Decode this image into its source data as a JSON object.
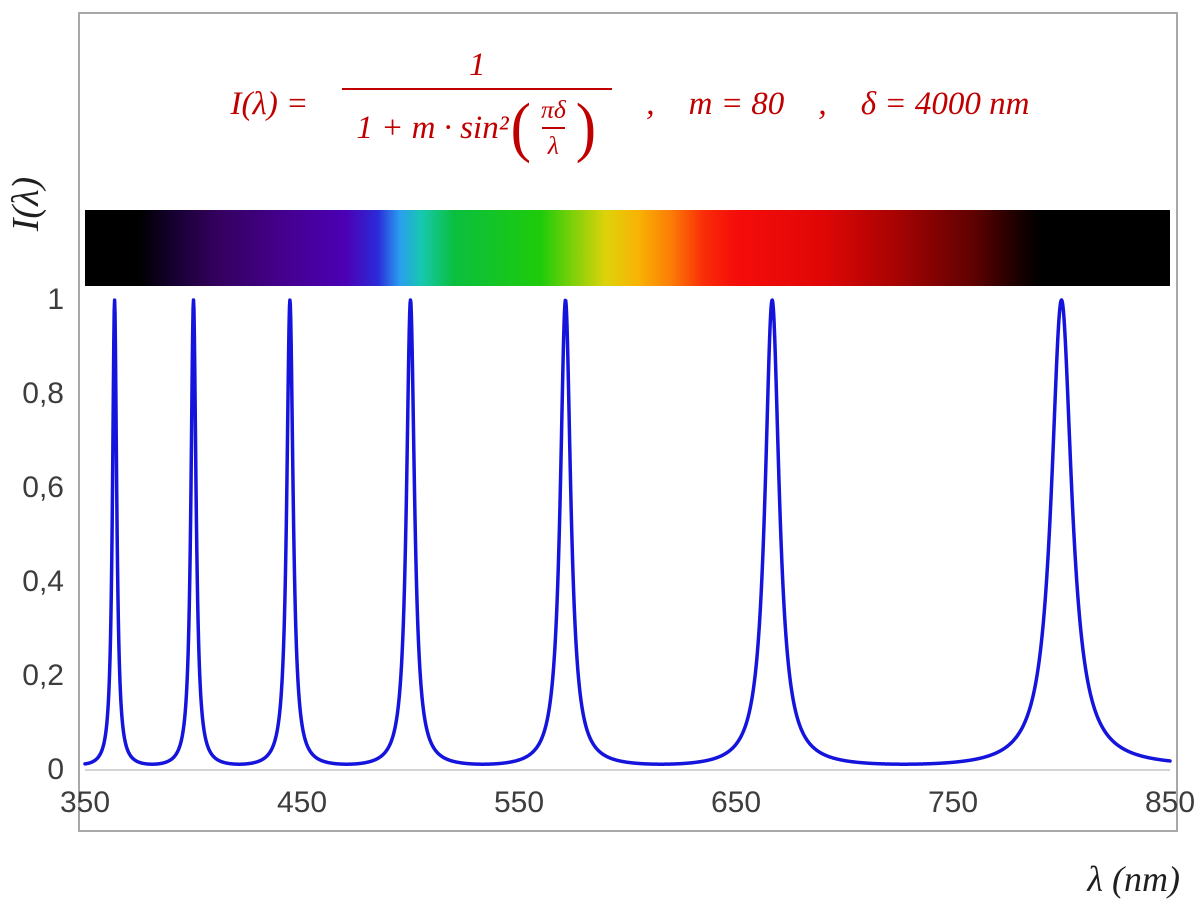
{
  "formula": {
    "lhs": "I(λ) =",
    "frac_num": "1",
    "frac_den_prefix": "1 + m · sin²",
    "inner_num": "πδ",
    "inner_den": "λ",
    "comma1": ",",
    "m_text": "m = 80",
    "comma2": ",",
    "delta_text": "δ = 4000 nm",
    "color": "#c00000"
  },
  "axes": {
    "y_title": "I(λ)",
    "x_title": "λ  (nm)"
  },
  "chart_data": {
    "type": "line",
    "title": "I(λ) = 1 / (1 + m·sin²(πδ/λ)) ,  m = 80 ,  δ = 4000 nm",
    "xlabel": "λ (nm)",
    "ylabel": "I(λ)",
    "x_range": [
      350,
      850
    ],
    "y_range": [
      0,
      1
    ],
    "grid": false,
    "legend": "none",
    "params": {
      "m": 80,
      "delta_nm": 4000
    },
    "function": "I(lambda) = 1 / (1 + m * sin^2(pi*delta/lambda))",
    "peak_wavelengths_nm": [
      363.6,
      400.0,
      444.4,
      500.0,
      571.4,
      666.7,
      800.0
    ],
    "peak_value": 1,
    "min_value": 0.0123,
    "curve_color": "#1414dd",
    "x_ticks": [
      "350",
      "450",
      "550",
      "650",
      "750",
      "850"
    ],
    "y_ticks": [
      "1",
      "0,8",
      "0,6",
      "0,4",
      "0,2",
      "0"
    ],
    "spectrum_stops": [
      {
        "pos": 0,
        "color": "#000000"
      },
      {
        "pos": 5,
        "color": "#000000"
      },
      {
        "pos": 8,
        "color": "#14002e"
      },
      {
        "pos": 12,
        "color": "#33005c"
      },
      {
        "pos": 18,
        "color": "#44008c"
      },
      {
        "pos": 24,
        "color": "#4c00b4"
      },
      {
        "pos": 27,
        "color": "#2b2bd8"
      },
      {
        "pos": 29,
        "color": "#2a9df0"
      },
      {
        "pos": 31,
        "color": "#17c8b0"
      },
      {
        "pos": 34,
        "color": "#0abf3f"
      },
      {
        "pos": 42,
        "color": "#1ecb0a"
      },
      {
        "pos": 45,
        "color": "#7fd00a"
      },
      {
        "pos": 48,
        "color": "#ded20b"
      },
      {
        "pos": 51,
        "color": "#f8b304"
      },
      {
        "pos": 54,
        "color": "#fb7d06"
      },
      {
        "pos": 57,
        "color": "#f92d07"
      },
      {
        "pos": 60,
        "color": "#f50d0a"
      },
      {
        "pos": 68,
        "color": "#e00606"
      },
      {
        "pos": 75,
        "color": "#a50303"
      },
      {
        "pos": 82,
        "color": "#5e0101"
      },
      {
        "pos": 86,
        "color": "#1a0000"
      },
      {
        "pos": 88,
        "color": "#000000"
      },
      {
        "pos": 100,
        "color": "#000000"
      }
    ]
  }
}
